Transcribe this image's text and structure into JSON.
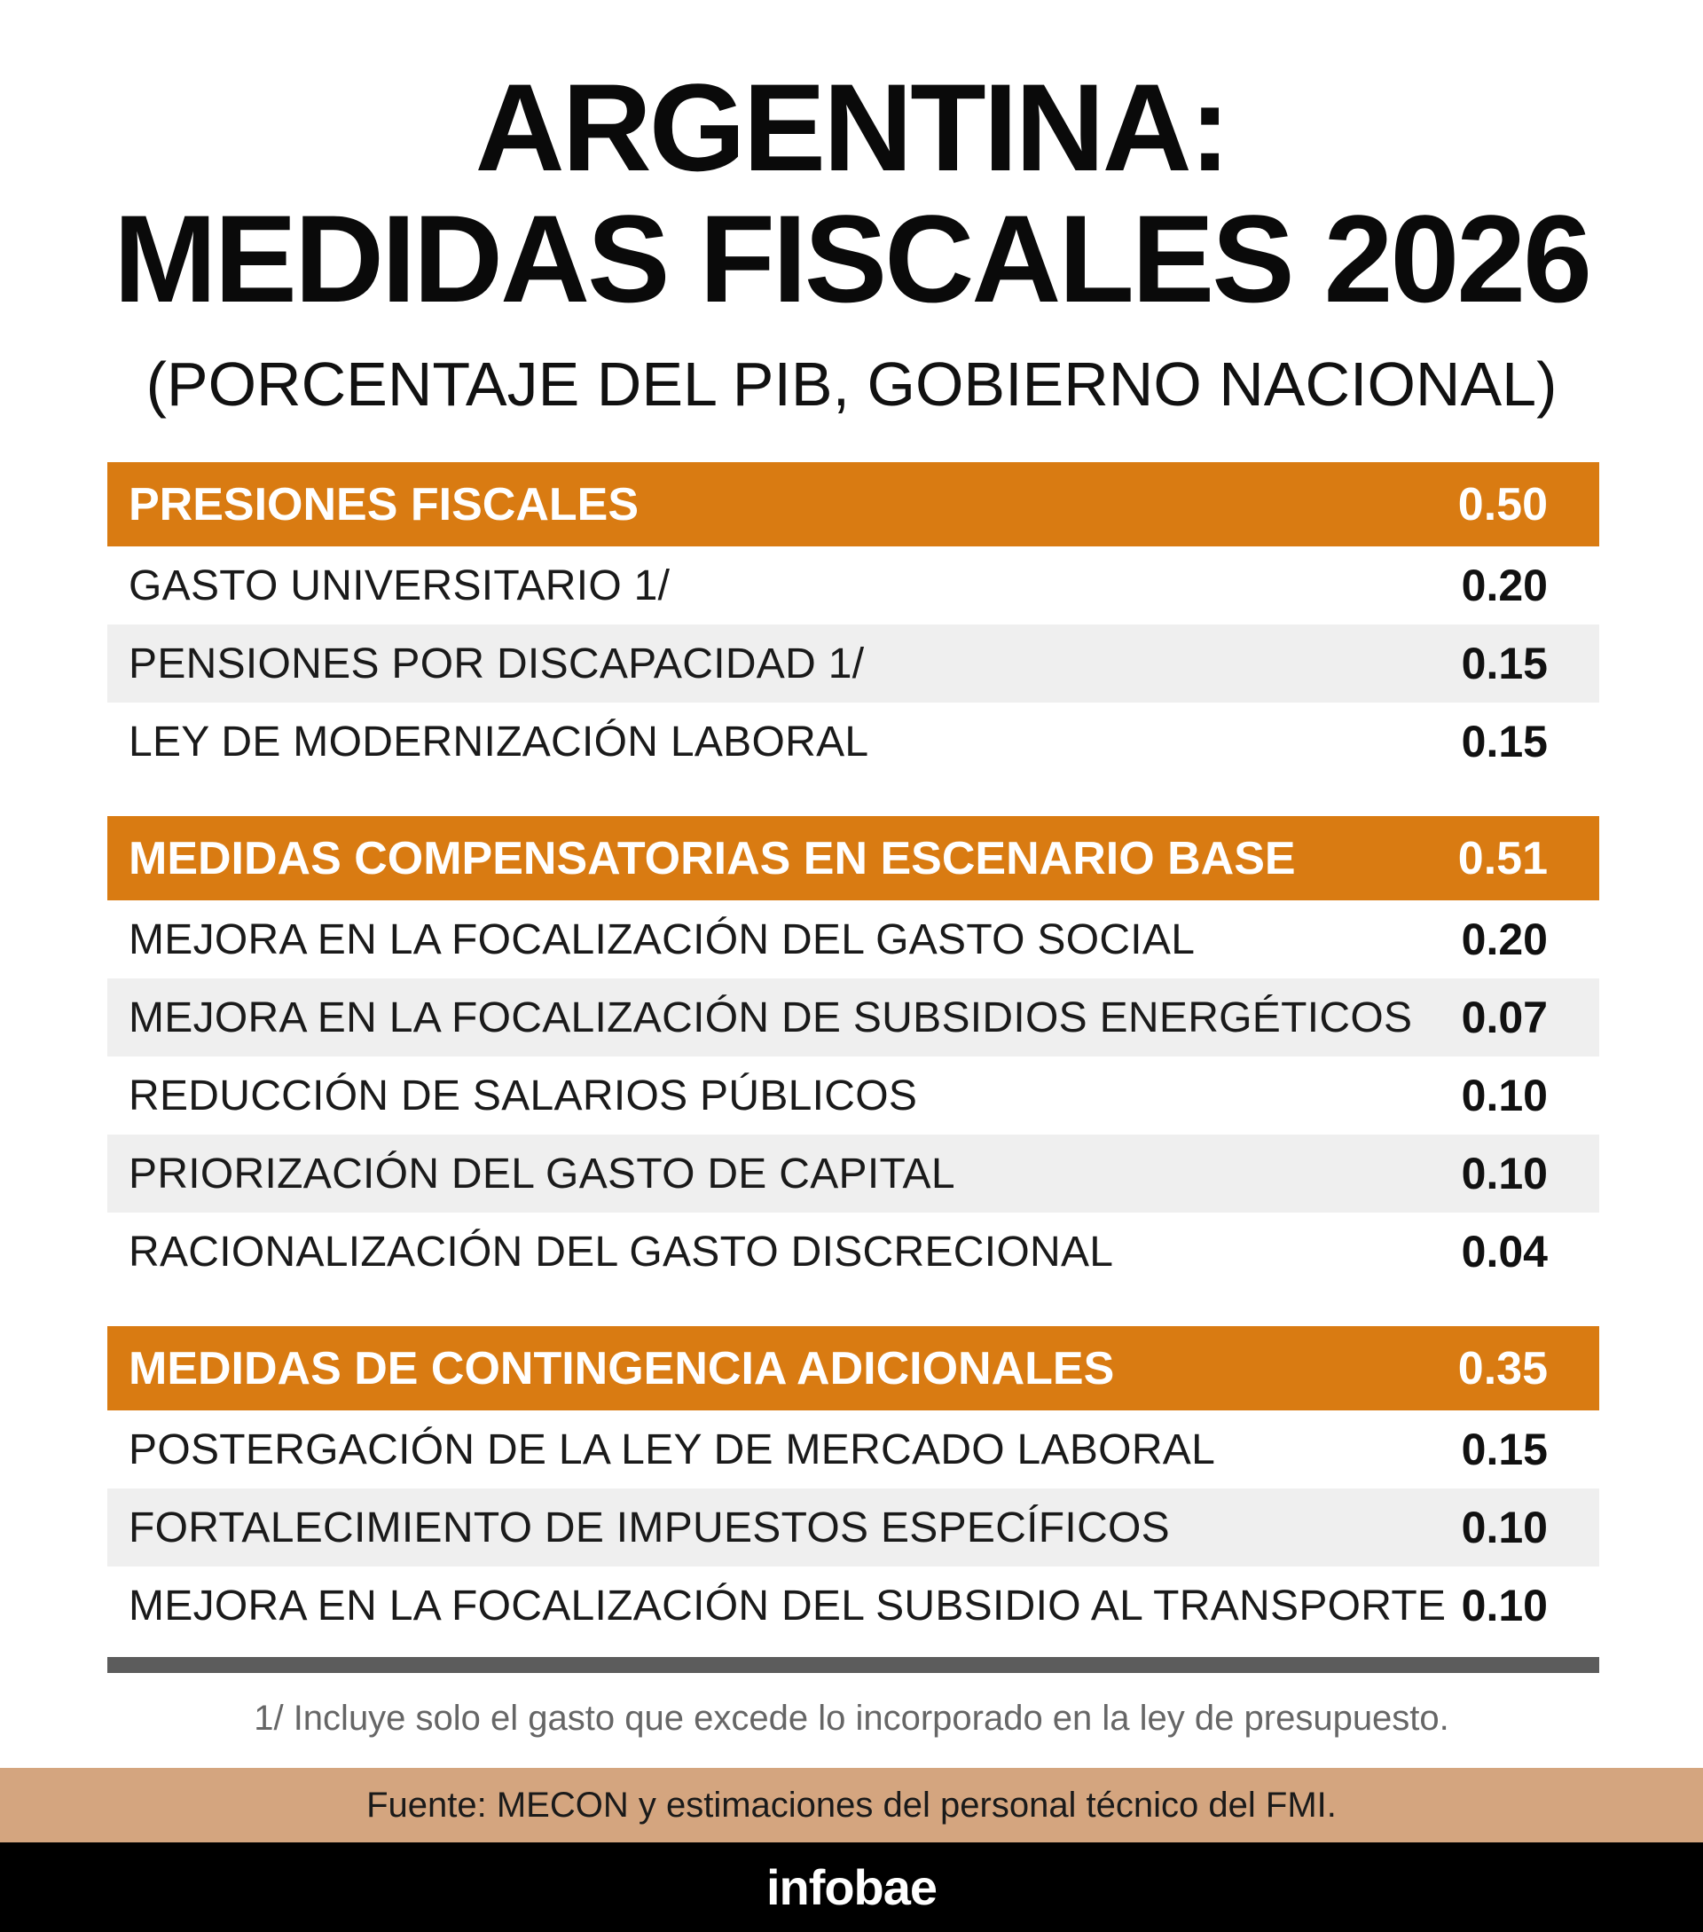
{
  "title": {
    "line1": "ARGENTINA:",
    "line2": "MEDIDAS FISCALES 2026"
  },
  "subtitle": "(PORCENTAJE DEL PIB, GOBIERNO NACIONAL)",
  "sections": [
    {
      "label": "PRESIONES FISCALES",
      "value": "0.50",
      "rows": [
        {
          "label": "GASTO UNIVERSITARIO 1/",
          "value": "0.20"
        },
        {
          "label": "PENSIONES POR DISCAPACIDAD 1/",
          "value": "0.15"
        },
        {
          "label": "LEY DE MODERNIZACIÓN LABORAL",
          "value": "0.15"
        }
      ]
    },
    {
      "label": "MEDIDAS COMPENSATORIAS EN ESCENARIO BASE",
      "value": "0.51",
      "rows": [
        {
          "label": "MEJORA EN LA FOCALIZACIÓN DEL GASTO SOCIAL",
          "value": "0.20"
        },
        {
          "label": "MEJORA EN LA FOCALIZACIÓN DE SUBSIDIOS ENERGÉTICOS",
          "value": "0.07"
        },
        {
          "label": "REDUCCIÓN DE SALARIOS PÚBLICOS",
          "value": "0.10"
        },
        {
          "label": "PRIORIZACIÓN DEL GASTO DE CAPITAL",
          "value": "0.10"
        },
        {
          "label": "RACIONALIZACIÓN DEL GASTO DISCRECIONAL",
          "value": "0.04"
        }
      ]
    },
    {
      "label": "MEDIDAS DE CONTINGENCIA ADICIONALES",
      "value": "0.35",
      "rows": [
        {
          "label": "POSTERGACIÓN DE LA LEY DE MERCADO LABORAL",
          "value": "0.15"
        },
        {
          "label": "FORTALECIMIENTO DE IMPUESTOS ESPECÍFICOS",
          "value": "0.10"
        },
        {
          "label": "MEJORA EN LA FOCALIZACIÓN DEL SUBSIDIO AL TRANSPORTE",
          "value": "0.10"
        }
      ]
    }
  ],
  "footnote": "1/ Incluye solo el gasto que excede lo incorporado en la ley de presupuesto.",
  "source": "Fuente: MECON y estimaciones del personal técnico del FMI.",
  "brand": "infobae",
  "colors": {
    "header_orange": "#d97b12",
    "row_alt": "#efefef",
    "rule": "#5c5c5c",
    "source_bar": "#d4a57f",
    "brand_bar": "#000000"
  }
}
